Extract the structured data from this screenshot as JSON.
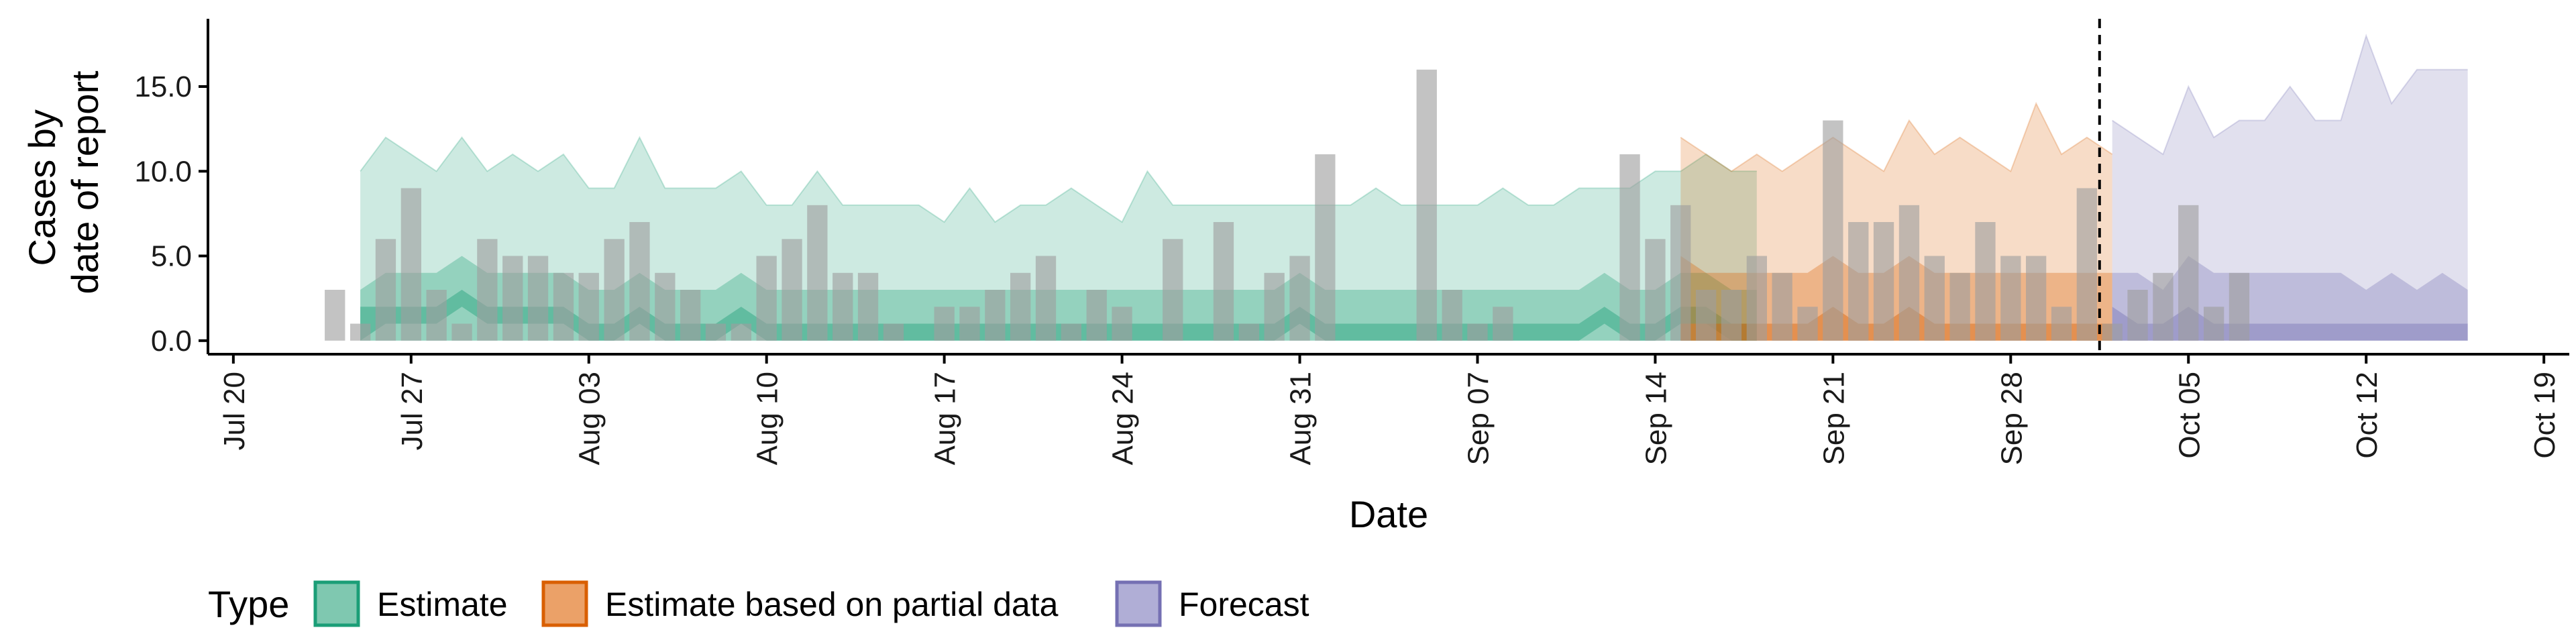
{
  "chart_data": {
    "type": "area",
    "xlabel": "Date",
    "ylabel_lines": [
      "Cases by",
      "date of report"
    ],
    "x_range": [
      "2020-07-19",
      "2020-10-20"
    ],
    "ylim": [
      -0.8,
      19
    ],
    "y_ticks": [
      0,
      5,
      10,
      15
    ],
    "y_tick_labels": [
      "0.0",
      "5.0",
      "10.0",
      "15.0"
    ],
    "x_ticks": [
      "2020-07-20",
      "2020-07-27",
      "2020-08-03",
      "2020-08-10",
      "2020-08-17",
      "2020-08-24",
      "2020-08-31",
      "2020-09-07",
      "2020-09-14",
      "2020-09-21",
      "2020-09-28",
      "2020-10-05",
      "2020-10-12",
      "2020-10-19"
    ],
    "x_tick_labels": [
      "Jul 20",
      "Jul 27",
      "Aug 03",
      "Aug 10",
      "Aug 17",
      "Aug 24",
      "Aug 31",
      "Sep 07",
      "Sep 14",
      "Sep 21",
      "Sep 28",
      "Oct 05",
      "Oct 12",
      "Oct 19"
    ],
    "vline_date": "2020-10-01",
    "grid": false,
    "legend": {
      "title": "Type",
      "position": "bottom",
      "entries": [
        {
          "label": "Estimate",
          "fill": "#1b9e77",
          "fill_light": "#7fc8b0"
        },
        {
          "label": "Estimate based on partial data",
          "fill": "#d95f02",
          "fill_light": "#eba168"
        },
        {
          "label": "Forecast",
          "fill": "#7570b3",
          "fill_light": "#b0aed6"
        }
      ]
    },
    "bar_color": "#9e9e9e",
    "reported_cases": {
      "start_date": "2020-07-24",
      "values": [
        3,
        1,
        6,
        9,
        3,
        1,
        6,
        5,
        5,
        4,
        4,
        6,
        7,
        4,
        3,
        1,
        1,
        5,
        6,
        8,
        4,
        4,
        1,
        0,
        2,
        2,
        3,
        4,
        5,
        1,
        3,
        2,
        0,
        6,
        0,
        7,
        1,
        4,
        5,
        11,
        0,
        0,
        0,
        16,
        3,
        1,
        2,
        0,
        0,
        0,
        0,
        11,
        6,
        8,
        3,
        3,
        5,
        4,
        2,
        13,
        7,
        7,
        8,
        5,
        4,
        7,
        5,
        5,
        2,
        9,
        1,
        3,
        4,
        8,
        2,
        4
      ]
    },
    "series": [
      {
        "name": "Estimate",
        "start_date": "2020-07-25",
        "ci90_lower": [
          0,
          0,
          0,
          0,
          0,
          0,
          0,
          0,
          0,
          0,
          0,
          0,
          0,
          0,
          0,
          0,
          0,
          0,
          0,
          0,
          0,
          0,
          0,
          0,
          0,
          0,
          0,
          0,
          0,
          0,
          0,
          0,
          0,
          0,
          0,
          0,
          0,
          0,
          0,
          0,
          0,
          0,
          0,
          0,
          0,
          0,
          0,
          0,
          0,
          0,
          0,
          0,
          0,
          0,
          0,
          0
        ],
        "ci90_upper": [
          10,
          12,
          11,
          10,
          12,
          10,
          11,
          10,
          11,
          9,
          9,
          12,
          9,
          9,
          9,
          10,
          8,
          8,
          10,
          8,
          8,
          8,
          8,
          7,
          9,
          7,
          8,
          8,
          9,
          8,
          7,
          10,
          8,
          8,
          8,
          8,
          8,
          8,
          8,
          8,
          9,
          8,
          8,
          8,
          8,
          9,
          8,
          8,
          9,
          9,
          9,
          10,
          10,
          11,
          10,
          10
        ],
        "ci50_lower": [
          0,
          0,
          0,
          0,
          0,
          0,
          0,
          0,
          0,
          0,
          0,
          0,
          0,
          0,
          0,
          0,
          0,
          0,
          0,
          0,
          0,
          0,
          0,
          0,
          0,
          0,
          0,
          0,
          0,
          0,
          0,
          0,
          0,
          0,
          0,
          0,
          0,
          0,
          0,
          0,
          0,
          0,
          0,
          0,
          0,
          0,
          0,
          0,
          0,
          0,
          0,
          0,
          0,
          0,
          0,
          0
        ],
        "ci50_upper": [
          3,
          4,
          4,
          4,
          5,
          4,
          4,
          4,
          4,
          3,
          3,
          4,
          3,
          3,
          3,
          4,
          3,
          3,
          3,
          3,
          3,
          3,
          3,
          3,
          3,
          3,
          3,
          3,
          3,
          3,
          3,
          3,
          3,
          3,
          3,
          3,
          3,
          4,
          3,
          3,
          3,
          3,
          3,
          3,
          3,
          3,
          3,
          3,
          3,
          4,
          3,
          3,
          4,
          4,
          3,
          3
        ],
        "ci20_lower": [
          0,
          1,
          1,
          1,
          2,
          1,
          1,
          1,
          1,
          0,
          0,
          1,
          0,
          0,
          0,
          1,
          0,
          0,
          0,
          0,
          0,
          0,
          0,
          0,
          0,
          0,
          0,
          0,
          0,
          0,
          0,
          0,
          0,
          0,
          0,
          0,
          0,
          1,
          0,
          0,
          0,
          0,
          0,
          0,
          0,
          0,
          0,
          0,
          0,
          1,
          0,
          0,
          1,
          1,
          0,
          0
        ],
        "ci20_upper": [
          2,
          2,
          2,
          2,
          3,
          2,
          2,
          2,
          2,
          1,
          1,
          2,
          1,
          1,
          1,
          2,
          1,
          1,
          1,
          1,
          1,
          1,
          1,
          1,
          1,
          1,
          1,
          1,
          1,
          1,
          1,
          1,
          1,
          1,
          1,
          1,
          1,
          2,
          1,
          1,
          1,
          1,
          1,
          1,
          1,
          1,
          1,
          1,
          1,
          2,
          1,
          1,
          2,
          2,
          1,
          1
        ]
      },
      {
        "name": "Estimate based on partial data",
        "start_date": "2020-09-15",
        "ci90_lower": [
          0,
          0,
          0,
          0,
          0,
          0,
          0,
          0,
          0,
          0,
          0,
          0,
          0,
          0,
          0,
          0,
          0,
          0
        ],
        "ci90_upper": [
          12,
          11,
          10,
          11,
          10,
          11,
          12,
          11,
          10,
          13,
          11,
          12,
          11,
          10,
          14,
          11,
          12,
          11
        ],
        "ci50_lower": [
          0,
          0,
          0,
          0,
          0,
          0,
          0,
          0,
          0,
          0,
          0,
          0,
          0,
          0,
          0,
          0,
          0,
          0
        ],
        "ci50_upper": [
          5,
          4,
          4,
          4,
          4,
          4,
          5,
          4,
          4,
          5,
          4,
          4,
          4,
          4,
          4,
          4,
          4,
          4
        ],
        "ci20_lower": [
          0,
          0,
          0,
          0,
          0,
          0,
          0,
          0,
          0,
          0,
          0,
          0,
          0,
          0,
          0,
          0,
          0,
          0
        ],
        "ci20_upper": [
          1,
          1,
          1,
          1,
          1,
          1,
          2,
          1,
          1,
          2,
          1,
          1,
          1,
          1,
          1,
          1,
          1,
          1
        ]
      },
      {
        "name": "Forecast",
        "start_date": "2020-10-02",
        "ci90_lower": [
          0,
          0,
          0,
          0,
          0,
          0,
          0,
          0,
          0,
          0,
          0,
          0,
          0,
          0,
          0
        ],
        "ci90_upper": [
          13,
          12,
          11,
          15,
          12,
          13,
          13,
          15,
          13,
          13,
          18,
          14,
          16,
          16,
          16
        ],
        "ci50_lower": [
          0,
          0,
          0,
          0,
          0,
          0,
          0,
          0,
          0,
          0,
          0,
          0,
          0,
          0,
          0
        ],
        "ci50_upper": [
          4,
          4,
          3,
          5,
          4,
          4,
          4,
          4,
          4,
          4,
          3,
          4,
          3,
          4,
          3
        ],
        "ci20_lower": [
          0,
          0,
          0,
          0,
          0,
          0,
          0,
          0,
          0,
          0,
          0,
          0,
          0,
          0,
          0
        ],
        "ci20_upper": [
          2,
          1,
          1,
          2,
          1,
          1,
          1,
          1,
          1,
          1,
          1,
          1,
          1,
          1,
          1
        ]
      }
    ]
  }
}
